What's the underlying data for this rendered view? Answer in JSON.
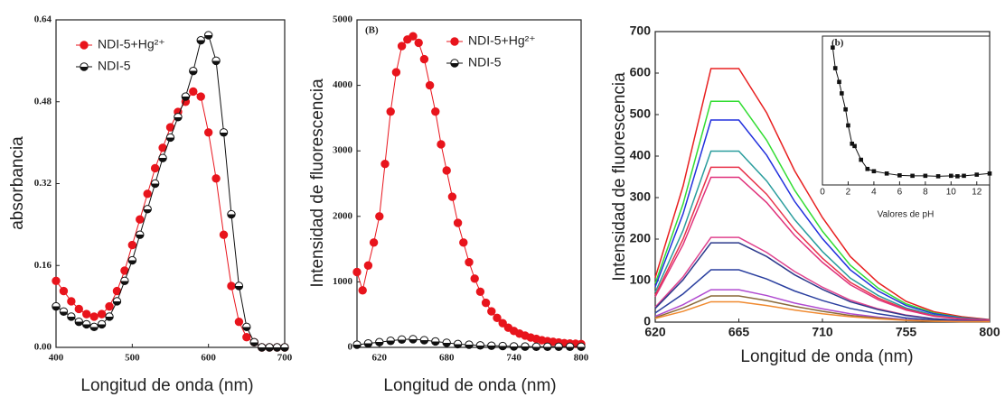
{
  "chart_data": [
    {
      "type": "line",
      "xlabel": "Longitud de onda (nm)",
      "ylabel": "absorbancia",
      "xlim": [
        400,
        700
      ],
      "xticks": [
        400,
        500,
        600,
        700
      ],
      "ylim": [
        0,
        0.64
      ],
      "yticks": [
        {
          "value": 0,
          "label": "0.00"
        },
        0.16,
        0.32,
        0.48,
        0.64
      ],
      "legend": "upper left",
      "x": [
        400,
        410,
        420,
        430,
        440,
        450,
        460,
        470,
        480,
        490,
        500,
        510,
        520,
        530,
        540,
        550,
        560,
        570,
        580,
        590,
        600,
        610,
        620,
        630,
        640,
        650,
        660,
        670,
        680,
        690,
        700
      ],
      "series": [
        {
          "name": "NDI-5+Hg²⁺",
          "color": "#e8141c",
          "marker": "filled",
          "values": [
            0.13,
            0.11,
            0.09,
            0.075,
            0.065,
            0.06,
            0.065,
            0.08,
            0.11,
            0.15,
            0.2,
            0.25,
            0.3,
            0.35,
            0.39,
            0.43,
            0.46,
            0.48,
            0.5,
            0.49,
            0.42,
            0.33,
            0.22,
            0.12,
            0.05,
            0.02,
            0.01,
            0,
            0,
            0,
            0
          ]
        },
        {
          "name": "NDI-5",
          "color": "#111111",
          "marker": "half",
          "values": [
            0.08,
            0.07,
            0.06,
            0.05,
            0.045,
            0.04,
            0.045,
            0.06,
            0.09,
            0.13,
            0.17,
            0.22,
            0.27,
            0.32,
            0.37,
            0.41,
            0.45,
            0.49,
            0.54,
            0.6,
            0.61,
            0.56,
            0.42,
            0.26,
            0.12,
            0.04,
            0.01,
            0,
            0,
            0,
            0
          ]
        }
      ]
    },
    {
      "type": "line",
      "panel_label": "(B)",
      "xlabel": "Longitud de onda (nm)",
      "ylabel": "Intensidad de fluorescencia",
      "xlim": [
        600,
        800
      ],
      "xticks": [
        620,
        680,
        740,
        800
      ],
      "ylim": [
        0,
        5000
      ],
      "yticks": [
        0,
        1000,
        2000,
        3000,
        4000,
        5000
      ],
      "legend": "upper right",
      "series": [
        {
          "name": "NDI-5+Hg²⁺",
          "color": "#e8141c",
          "marker": "filled",
          "x": [
            600,
            605,
            610,
            615,
            620,
            625,
            630,
            635,
            640,
            645,
            650,
            655,
            660,
            665,
            670,
            675,
            680,
            685,
            690,
            695,
            700,
            705,
            710,
            715,
            720,
            725,
            730,
            735,
            740,
            745,
            750,
            755,
            760,
            765,
            770,
            775,
            780,
            785,
            790,
            795,
            800
          ],
          "values": [
            1150,
            870,
            1250,
            1600,
            2000,
            2800,
            3600,
            4200,
            4600,
            4700,
            4750,
            4650,
            4400,
            4000,
            3600,
            3100,
            2700,
            2300,
            1900,
            1600,
            1300,
            1050,
            850,
            680,
            550,
            450,
            370,
            300,
            250,
            210,
            180,
            150,
            130,
            110,
            95,
            85,
            75,
            65,
            60,
            55,
            50
          ]
        },
        {
          "name": "NDI-5",
          "color": "#111111",
          "marker": "half",
          "x": [
            600,
            610,
            620,
            630,
            640,
            650,
            660,
            670,
            680,
            690,
            700,
            710,
            720,
            730,
            740,
            750,
            760,
            770,
            780,
            790,
            800
          ],
          "values": [
            40,
            60,
            80,
            100,
            120,
            125,
            110,
            90,
            70,
            50,
            40,
            30,
            25,
            20,
            15,
            12,
            10,
            10,
            10,
            10,
            10
          ]
        }
      ]
    },
    {
      "type": "line",
      "xlabel": "Longitud de onda (nm)",
      "ylabel": "Intensidad de fluorescencia",
      "xlim": [
        620,
        800
      ],
      "xticks": [
        620,
        665,
        710,
        755,
        800
      ],
      "ylim": [
        0,
        700
      ],
      "yticks": [
        0,
        100,
        200,
        300,
        400,
        500,
        600,
        700
      ],
      "x": [
        620,
        635,
        650,
        665,
        680,
        695,
        710,
        725,
        740,
        755,
        770,
        785,
        800
      ],
      "series": [
        {
          "color": "#e82020",
          "values": [
            107,
            328,
            611,
            611,
            504,
            365,
            252,
            158,
            95,
            50,
            25,
            13,
            6
          ]
        },
        {
          "color": "#33dd33",
          "values": [
            93,
            285,
            532,
            532,
            438,
            318,
            219,
            137,
            82,
            44,
            22,
            11,
            5
          ]
        },
        {
          "color": "#2230dd",
          "values": [
            85,
            261,
            487,
            487,
            402,
            291,
            201,
            126,
            75,
            40,
            20,
            10,
            5
          ]
        },
        {
          "color": "#2a9d9d",
          "values": [
            72,
            221,
            412,
            412,
            340,
            247,
            170,
            106,
            64,
            34,
            17,
            9,
            4
          ]
        },
        {
          "color": "#e8324b",
          "values": [
            65,
            200,
            373,
            373,
            308,
            223,
            154,
            96,
            58,
            31,
            15,
            8,
            4
          ]
        },
        {
          "color": "#e0317a",
          "values": [
            61,
            187,
            349,
            349,
            288,
            209,
            144,
            90,
            54,
            29,
            14,
            7,
            4
          ]
        },
        {
          "color": "#e0448f",
          "values": [
            36,
            109,
            204,
            204,
            168,
            122,
            84,
            53,
            32,
            17,
            8,
            4,
            2
          ]
        },
        {
          "color": "#2c3a8c",
          "values": [
            33,
            102,
            191,
            191,
            158,
            114,
            79,
            49,
            30,
            16,
            8,
            4,
            2
          ]
        },
        {
          "color": "#2a3f9f",
          "values": [
            22,
            68,
            126,
            126,
            104,
            75,
            52,
            33,
            20,
            10,
            5,
            3,
            1
          ]
        },
        {
          "color": "#b04ad0",
          "values": [
            14,
            42,
            78,
            78,
            64,
            46,
            32,
            20,
            12,
            6,
            3,
            2,
            1
          ]
        },
        {
          "color": "#8a6a3a",
          "values": [
            11,
            34,
            63,
            63,
            52,
            38,
            26,
            16,
            10,
            5,
            3,
            1,
            1
          ]
        },
        {
          "color": "#f08a30",
          "values": [
            9,
            26,
            49,
            49,
            40,
            29,
            20,
            13,
            8,
            4,
            2,
            1,
            1
          ]
        }
      ]
    },
    {
      "type": "line",
      "panel_label": "(b)",
      "xlabel": "Valores de pH",
      "xlim": [
        0,
        13
      ],
      "xticks": [
        0,
        2,
        4,
        6,
        8,
        10,
        12
      ],
      "ylim": [
        0,
        650
      ],
      "series": [
        {
          "color": "#111111",
          "marker": "square",
          "x": [
            0.8,
            1,
            1.3,
            1.5,
            1.8,
            2,
            2.3,
            2.5,
            3,
            3.5,
            4,
            5,
            6,
            7,
            8,
            9,
            10,
            10.5,
            11,
            12,
            13
          ],
          "values": [
            600,
            510,
            450,
            400,
            330,
            260,
            180,
            170,
            110,
            70,
            60,
            50,
            42,
            40,
            40,
            38,
            40,
            38,
            40,
            45,
            50
          ]
        }
      ]
    }
  ]
}
